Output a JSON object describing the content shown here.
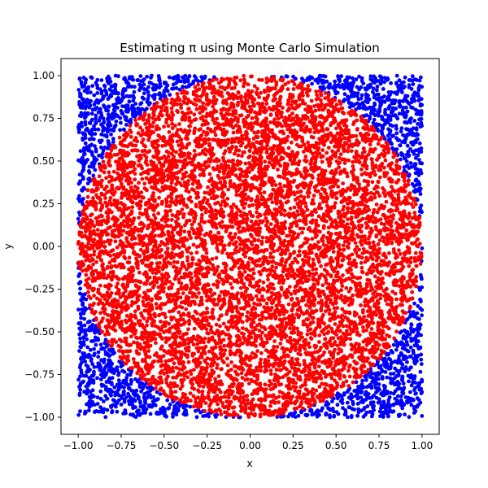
{
  "chart_data": {
    "type": "scatter",
    "title": "Estimating π using Monte Carlo Simulation",
    "xlabel": "x",
    "ylabel": "y",
    "xlim": [
      -1.1,
      1.1
    ],
    "ylim": [
      -1.1,
      1.1
    ],
    "xticks": [
      -1.0,
      -0.75,
      -0.5,
      -0.25,
      0.0,
      0.25,
      0.5,
      0.75,
      1.0
    ],
    "yticks": [
      -1.0,
      -0.75,
      -0.5,
      -0.25,
      0.0,
      0.25,
      0.5,
      0.75,
      1.0
    ],
    "xtick_labels": [
      "−1.00",
      "−0.75",
      "−0.50",
      "−0.25",
      "0.00",
      "0.25",
      "0.50",
      "0.75",
      "1.00"
    ],
    "ytick_labels": [
      "−1.00",
      "−0.75",
      "−0.50",
      "−0.25",
      "0.00",
      "0.25",
      "0.50",
      "0.75",
      "1.00"
    ],
    "grid": false,
    "aspect": "equal",
    "series": [
      {
        "color": "#ff0000",
        "description": "points inside unit circle",
        "points": [
          [
            0.0,
            0.0
          ],
          [
            0.5,
            0.5
          ],
          [
            -0.5,
            0.5
          ],
          [
            0.5,
            -0.5
          ],
          [
            -0.5,
            -0.5
          ],
          [
            0.95,
            0.0
          ],
          [
            -0.95,
            0.0
          ],
          [
            0.0,
            0.98
          ],
          [
            0.0,
            -0.98
          ],
          [
            0.25,
            0.25
          ],
          [
            -0.25,
            -0.25
          ],
          [
            0.7,
            0.6
          ],
          [
            -0.7,
            -0.6
          ],
          [
            0.6,
            -0.7
          ],
          [
            -0.6,
            0.7
          ]
        ]
      },
      {
        "color": "#0000ff",
        "description": "points outside unit circle",
        "points": [
          [
            0.95,
            0.95
          ],
          [
            -0.95,
            0.95
          ],
          [
            0.95,
            -0.95
          ],
          [
            -0.95,
            -0.95
          ],
          [
            0.85,
            0.8
          ],
          [
            -0.8,
            0.85
          ],
          [
            0.8,
            -0.85
          ],
          [
            -0.85,
            -0.8
          ]
        ]
      }
    ],
    "sample_size_estimate": 10000
  }
}
